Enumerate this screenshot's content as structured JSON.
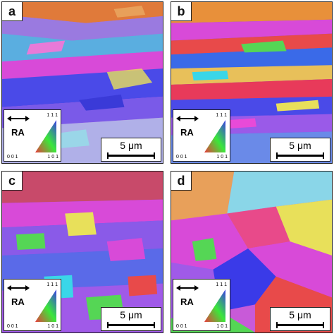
{
  "panels": [
    {
      "label": "a",
      "legend": {
        "ra": "RA",
        "corner_111": "1 1 1",
        "corner_001": "0 0 1",
        "corner_101": "1 0 1"
      },
      "scale": "5 μm"
    },
    {
      "label": "b",
      "legend": {
        "ra": "RA",
        "corner_111": "1 1 1",
        "corner_001": "0 0 1",
        "corner_101": "1 0 1"
      },
      "scale": "5 μm"
    },
    {
      "label": "c",
      "legend": {
        "ra": "RA",
        "corner_111": "1 1 1",
        "corner_001": "0 0 1",
        "corner_101": "1 0 1"
      },
      "scale": "5 μm"
    },
    {
      "label": "d",
      "legend": {
        "ra": "RA",
        "corner_111": "1 1 1",
        "corner_001": "0 0 1",
        "corner_101": "1 0 1"
      },
      "scale": "5 μm"
    }
  ],
  "colors": {
    "red": "#e8443a",
    "green": "#55d655",
    "blue": "#3a3ae8",
    "magenta": "#d23ad2",
    "purple": "#8a4ae8",
    "cyan": "#5ad6e8",
    "yellow": "#e8e05a",
    "orange": "#e8903a"
  }
}
